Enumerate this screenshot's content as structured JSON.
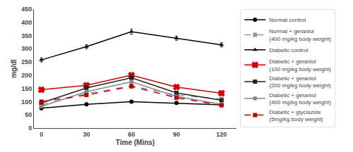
{
  "chart_data": {
    "type": "line",
    "x": [
      0,
      30,
      60,
      90,
      120
    ],
    "series": [
      {
        "name": "Normal control",
        "values": [
          75,
          90,
          100,
          95,
          88
        ],
        "errors": [
          5,
          5,
          5,
          5,
          5
        ],
        "color": "#000000",
        "marker": "circle",
        "line_style": "solid"
      },
      {
        "name": "Normal + geraniol\n(400 mg/kg body weight)",
        "values": [
          88,
          130,
          160,
          125,
          110
        ],
        "errors": [
          5,
          5,
          5,
          5,
          5
        ],
        "color": "#999999",
        "marker": "square",
        "line_style": "dashed"
      },
      {
        "name": "Diabetic control",
        "values": [
          258,
          308,
          365,
          340,
          315
        ],
        "errors": [
          8,
          8,
          10,
          8,
          8
        ],
        "color": "#000000",
        "marker": "triangle-up",
        "line_style": "solid"
      },
      {
        "name": "Diabetic + geraniol\n(100 mg/kg body weight)",
        "values": [
          145,
          162,
          200,
          155,
          132
        ],
        "errors": [
          6,
          6,
          7,
          6,
          6
        ],
        "color": "#cc0000",
        "marker": "x",
        "line_style": "solid"
      },
      {
        "name": "Diabetic + geraniol\n(200 mg/kg body weight)",
        "values": [
          95,
          152,
          190,
          133,
          105
        ],
        "errors": [
          5,
          5,
          6,
          5,
          5
        ],
        "color": "#222222",
        "marker": "square",
        "line_style": "solid"
      },
      {
        "name": "Diabetic + geraniol\n(400 mg/kg body weight)",
        "values": [
          82,
          138,
          175,
          120,
          90
        ],
        "errors": [
          5,
          5,
          5,
          5,
          5
        ],
        "color": "#888888",
        "marker": "circle",
        "line_style": "solid"
      },
      {
        "name": "Diabetic + glyclazide\n(5mg/kg body weight)",
        "values": [
          100,
          125,
          158,
          115,
          86
        ],
        "errors": [
          5,
          5,
          6,
          5,
          5
        ],
        "color": "#bb0000",
        "marker": "square",
        "line_style": "dashed"
      }
    ],
    "x_label": "Time (Mins)",
    "y_label": "mg/dl",
    "xlim": [
      -5,
      130
    ],
    "ylim": [
      0,
      450
    ],
    "xticks": [
      0,
      30,
      60,
      90,
      120
    ],
    "yticks": [
      0,
      50,
      100,
      150,
      200,
      250,
      300,
      350,
      400,
      450
    ],
    "grid": false,
    "legend": "right"
  }
}
